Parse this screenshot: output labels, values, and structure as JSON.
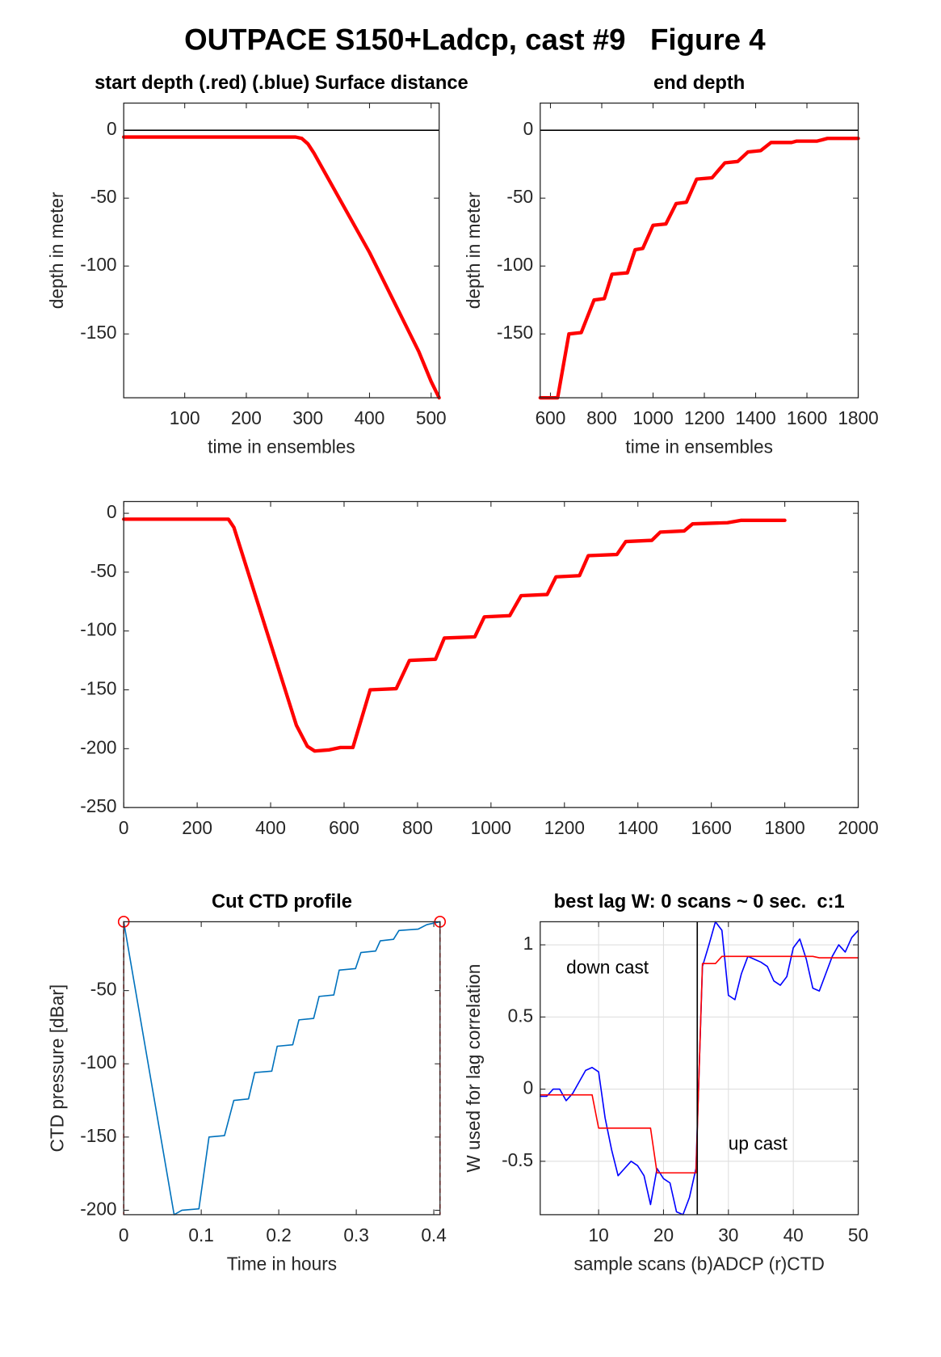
{
  "title": "OUTPACE S150+Ladcp, cast #9   Figure 4",
  "chart_data": [
    {
      "type": "line",
      "title": "start depth (.red) (.blue) Surface distance",
      "xlabel": "time in ensembles",
      "ylabel": "depth in meter",
      "x": [
        1,
        280,
        290,
        300,
        310,
        400,
        480,
        500,
        513
      ],
      "series": [
        {
          "color": "#ff0000",
          "values": [
            -5,
            -5,
            -6,
            -10,
            -17,
            -90,
            -163,
            -185,
            -197
          ]
        }
      ],
      "linewidth": 4,
      "hline": 0,
      "xlim": [
        1,
        513
      ],
      "ylim": [
        -197,
        20
      ],
      "xticks": [
        100,
        200,
        300,
        400,
        500
      ],
      "yticks": [
        -150,
        -100,
        -50,
        0
      ]
    },
    {
      "type": "line",
      "title": "end depth",
      "xlabel": "time in ensembles",
      "ylabel": "depth in meter",
      "x": [
        560,
        628,
        672,
        720,
        770,
        810,
        840,
        900,
        930,
        960,
        1000,
        1050,
        1090,
        1130,
        1170,
        1230,
        1280,
        1330,
        1370,
        1420,
        1460,
        1540,
        1560,
        1640,
        1680,
        1800
      ],
      "series": [
        {
          "color": "#ff0000",
          "values": [
            -197,
            -197,
            -150,
            -149,
            -125,
            -124,
            -106,
            -105,
            -88,
            -87,
            -70,
            -69,
            -54,
            -53,
            -36,
            -35,
            -24,
            -23,
            -16,
            -15,
            -9,
            -9,
            -8,
            -8,
            -6,
            -6
          ]
        }
      ],
      "linewidth": 4,
      "hline": 0,
      "xlim": [
        560,
        1800
      ],
      "ylim": [
        -197,
        20
      ],
      "xticks": [
        600,
        800,
        1000,
        1200,
        1400,
        1600,
        1800
      ],
      "yticks": [
        -150,
        -100,
        -50,
        0
      ]
    },
    {
      "type": "line",
      "x": [
        0,
        285,
        300,
        470,
        500,
        520,
        560,
        590,
        624,
        671,
        742,
        778,
        849,
        873,
        956,
        982,
        1051,
        1082,
        1153,
        1177,
        1241,
        1265,
        1343,
        1367,
        1438,
        1461,
        1526,
        1549,
        1644,
        1680,
        1800
      ],
      "series": [
        {
          "color": "#ff0000",
          "values": [
            -5,
            -5,
            -12,
            -180,
            -198,
            -202,
            -201,
            -199,
            -199,
            -150,
            -149,
            -125,
            -124,
            -106,
            -105,
            -88,
            -87,
            -70,
            -69,
            -54,
            -53,
            -36,
            -35,
            -24,
            -23,
            -16,
            -15,
            -9,
            -8,
            -6,
            -6
          ]
        }
      ],
      "linewidth": 4,
      "xlim": [
        0,
        2000
      ],
      "ylim": [
        -250,
        10
      ],
      "xticks": [
        0,
        200,
        400,
        600,
        800,
        1000,
        1200,
        1400,
        1600,
        1800,
        2000
      ],
      "yticks": [
        -250,
        -200,
        -150,
        -100,
        -50,
        0
      ]
    },
    {
      "type": "line",
      "title": "Cut CTD profile",
      "xlabel": "Time in hours",
      "ylabel": "CTD pressure [dBar]",
      "x": [
        0,
        0.065,
        0.075,
        0.097,
        0.11,
        0.13,
        0.142,
        0.161,
        0.169,
        0.191,
        0.198,
        0.218,
        0.226,
        0.245,
        0.252,
        0.271,
        0.278,
        0.299,
        0.306,
        0.325,
        0.331,
        0.348,
        0.355,
        0.38,
        0.391,
        0.408
      ],
      "series": [
        {
          "color": "#0072bd",
          "values": [
            -3,
            -203,
            -200,
            -199,
            -150,
            -149,
            -125,
            -124,
            -106,
            -105,
            -88,
            -87,
            -70,
            -69,
            -54,
            -53,
            -36,
            -35,
            -24,
            -23,
            -16,
            -15,
            -9,
            -8,
            -5,
            -3
          ]
        }
      ],
      "linewidth": 1.5,
      "cut": [
        0,
        0.408
      ],
      "cut_color": "#ff0000",
      "xlim": [
        0,
        0.408
      ],
      "ylim": [
        -203,
        -3
      ],
      "xticks": [
        0,
        0.1,
        0.2,
        0.3,
        0.4
      ],
      "yticks": [
        -200,
        -150,
        -100,
        -50
      ]
    },
    {
      "type": "line",
      "title": "best lag W: 0 scans ~ 0 sec.  c:1",
      "xlabel": "sample scans (b)ADCP (r)CTD",
      "ylabel": "W used for lag correlation",
      "x": [
        1,
        2,
        3,
        4,
        5,
        6,
        7,
        8,
        9,
        10,
        11,
        12,
        13,
        14,
        15,
        16,
        17,
        18,
        19,
        20,
        21,
        22,
        23,
        24,
        25,
        26,
        27,
        28,
        29,
        30,
        31,
        32,
        33,
        34,
        35,
        36,
        37,
        38,
        39,
        40,
        41,
        42,
        43,
        44,
        45,
        46,
        47,
        48,
        49,
        50
      ],
      "series": [
        {
          "color": "#0000ff",
          "values": [
            -0.05,
            -0.05,
            0.0,
            0.0,
            -0.08,
            -0.03,
            0.05,
            0.13,
            0.15,
            0.12,
            -0.2,
            -0.42,
            -0.6,
            -0.55,
            -0.5,
            -0.53,
            -0.6,
            -0.8,
            -0.55,
            -0.62,
            -0.65,
            -0.85,
            -0.87,
            -0.75,
            -0.55,
            0.85,
            1.0,
            1.16,
            1.1,
            0.65,
            0.62,
            0.8,
            0.92,
            0.9,
            0.88,
            0.85,
            0.75,
            0.72,
            0.78,
            0.98,
            1.04,
            0.9,
            0.7,
            0.68,
            0.8,
            0.92,
            1.0,
            0.95,
            1.05,
            1.1
          ]
        },
        {
          "color": "#ff0000",
          "values": [
            -0.04,
            -0.04,
            -0.04,
            -0.04,
            -0.04,
            -0.04,
            -0.04,
            -0.04,
            -0.04,
            -0.27,
            -0.27,
            -0.27,
            -0.27,
            -0.27,
            -0.27,
            -0.27,
            -0.27,
            -0.27,
            -0.58,
            -0.58,
            -0.58,
            -0.58,
            -0.58,
            -0.58,
            -0.58,
            0.87,
            0.87,
            0.87,
            0.92,
            0.92,
            0.92,
            0.92,
            0.92,
            0.92,
            0.92,
            0.92,
            0.92,
            0.92,
            0.92,
            0.92,
            0.92,
            0.92,
            0.92,
            0.91,
            0.91,
            0.91,
            0.91,
            0.91,
            0.91,
            0.91
          ]
        }
      ],
      "linewidth": 1.5,
      "grid": true,
      "vline": 25.2,
      "annotations": [
        "down cast",
        "up cast"
      ],
      "xlim": [
        1,
        50
      ],
      "ylim": [
        -0.87,
        1.16
      ],
      "xticks": [
        10,
        20,
        30,
        40,
        50
      ],
      "yticks": [
        -0.5,
        0,
        0.5,
        1
      ]
    }
  ]
}
